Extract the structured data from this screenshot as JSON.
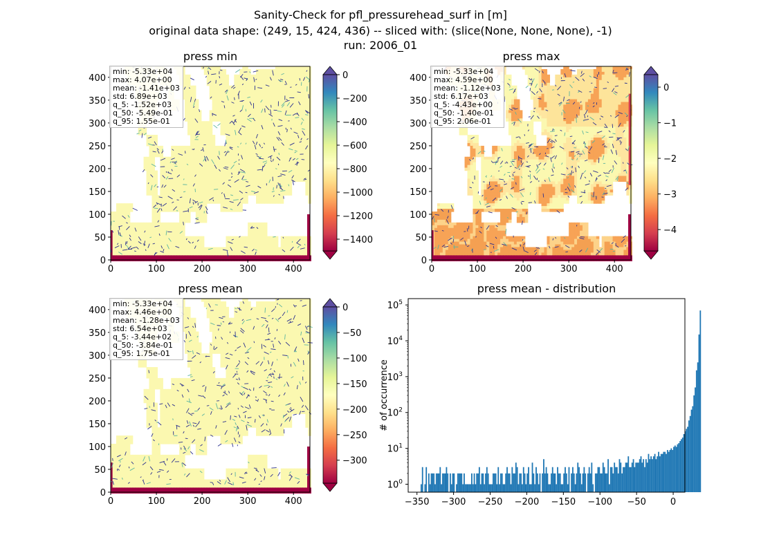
{
  "figure": {
    "title_lines": [
      "Sanity-Check for pfl_pressurehead_surf in [m]",
      "original data shape: (249, 15, 424, 436) -- sliced with: (slice(None, None, None), -1)",
      "run: 2006_01"
    ]
  },
  "panels": {
    "press_min": {
      "title": "press min",
      "stats": [
        "min: -5.33e+04",
        "max: 4.07e+00",
        "mean: -1.41e+03",
        "std: 6.89e+03",
        "q_5: -1.52e+03",
        "q_50: -5.49e-01",
        "q_95: 1.55e-01"
      ],
      "xticks": [
        "0",
        "100",
        "200",
        "300",
        "400"
      ],
      "yticks": [
        "0",
        "50",
        "100",
        "150",
        "200",
        "250",
        "300",
        "350",
        "400"
      ],
      "colorbar": {
        "range": [
          -1500,
          0
        ],
        "ticks": [
          "0",
          "−200",
          "−400",
          "−600",
          "−800",
          "−1000",
          "−1200",
          "−1400"
        ],
        "tick_values": [
          0,
          -200,
          -400,
          -600,
          -800,
          -1000,
          -1200,
          -1400
        ],
        "extend": "both",
        "colormap": "Spectral"
      }
    },
    "press_max": {
      "title": "press max",
      "stats": [
        "min: -5.33e+04",
        "max: 4.59e+00",
        "mean: -1.12e+03",
        "std: 6.17e+03",
        "q_5: -4.43e+00",
        "q_50: -1.40e-01",
        "q_95: 2.06e-01"
      ],
      "xticks": [
        "0",
        "100",
        "200",
        "300",
        "400"
      ],
      "yticks": [
        "0",
        "50",
        "100",
        "150",
        "200",
        "250",
        "300",
        "350",
        "400"
      ],
      "colorbar": {
        "range": [
          -4.6,
          0.35
        ],
        "ticks": [
          "0",
          "−1",
          "−2",
          "−3",
          "−4"
        ],
        "tick_values": [
          0,
          -1,
          -2,
          -3,
          -4
        ],
        "extend": "both",
        "colormap": "Spectral"
      }
    },
    "press_mean": {
      "title": "press mean",
      "stats": [
        "min: -5.33e+04",
        "max: 4.46e+00",
        "mean: -1.28e+03",
        "std: 6.54e+03",
        "q_5: -3.44e+02",
        "q_50: -3.84e-01",
        "q_95: 1.75e-01"
      ],
      "xticks": [
        "0",
        "100",
        "200",
        "300",
        "400"
      ],
      "yticks": [
        "0",
        "50",
        "100",
        "150",
        "200",
        "250",
        "300",
        "350",
        "400"
      ],
      "colorbar": {
        "range": [
          -345,
          0
        ],
        "ticks": [
          "0",
          "−50",
          "−100",
          "−150",
          "−200",
          "−250",
          "−300"
        ],
        "tick_values": [
          0,
          -50,
          -100,
          -150,
          -200,
          -250,
          -300
        ],
        "extend": "both",
        "colormap": "Spectral"
      }
    }
  },
  "colors": {
    "histogram_bar": "#1f77b4",
    "land_pale": "#fbf8b0",
    "river_blue": "#2a2f8f",
    "river_green": "#5ab4a0",
    "border_red": "#9e0142",
    "warm_orange": "#f7a356"
  },
  "chart_data": {
    "type": "histogram",
    "title": "press mean - distribution",
    "xlabel": "",
    "ylabel": "# of occurrence",
    "yscale": "log",
    "xlim": [
      -362,
      16
    ],
    "ylim": [
      0.6,
      150000
    ],
    "xticks": [
      "−350",
      "−300",
      "−250",
      "−200",
      "−150",
      "−100",
      "−50",
      "0"
    ],
    "xtick_values": [
      -350,
      -300,
      -250,
      -200,
      -150,
      -100,
      -50,
      0
    ],
    "ytick_values": [
      1,
      10,
      100,
      1000,
      10000,
      100000
    ],
    "yticks_base": "10",
    "yticks_exp": [
      "0",
      "1",
      "2",
      "3",
      "4",
      "5"
    ],
    "bin_edges_start": -345,
    "bin_width": 1.725,
    "counts": [
      1,
      3,
      0,
      1,
      3,
      0,
      2,
      1,
      2,
      2,
      2,
      1,
      2,
      2,
      2,
      3,
      1,
      2,
      2,
      2,
      3,
      2,
      0,
      2,
      1,
      2,
      2,
      0,
      1,
      2,
      2,
      2,
      2,
      1,
      2,
      1,
      1,
      1,
      1,
      1,
      2,
      1,
      2,
      1,
      2,
      2,
      3,
      1,
      2,
      2,
      1,
      2,
      3,
      2,
      1,
      1,
      1,
      2,
      2,
      2,
      1,
      3,
      1,
      2,
      2,
      1,
      1,
      2,
      3,
      2,
      2,
      1,
      3,
      2,
      2,
      4,
      3,
      1,
      2,
      2,
      1,
      3,
      2,
      1,
      2,
      3,
      1,
      1,
      4,
      2,
      1,
      3,
      2,
      1,
      2,
      0,
      2,
      5,
      2,
      3,
      2,
      1,
      1,
      2,
      3,
      2,
      2,
      1,
      3,
      2,
      2,
      1,
      1,
      2,
      3,
      2,
      1,
      3,
      0,
      2,
      3,
      2,
      1,
      2,
      4,
      3,
      2,
      1,
      2,
      3,
      2,
      0,
      2,
      3,
      2,
      4,
      1,
      0,
      2,
      2,
      3,
      3,
      2,
      2,
      4,
      3,
      2,
      2,
      5,
      1,
      3,
      3,
      2,
      4,
      3,
      3,
      2,
      5,
      4,
      2,
      3,
      3,
      4,
      4,
      6,
      3,
      3,
      4,
      5,
      3,
      4,
      4,
      4,
      5,
      6,
      4,
      5,
      3,
      5,
      4,
      7,
      5,
      6,
      5,
      6,
      7,
      5,
      6,
      8,
      6,
      7,
      7,
      8,
      8,
      7,
      9,
      8,
      9,
      10,
      9,
      11,
      12,
      11,
      13,
      14,
      16,
      18,
      20,
      25,
      30,
      35,
      40,
      60,
      80,
      120,
      150,
      300,
      500,
      1500,
      2500,
      15000,
      70000
    ]
  }
}
